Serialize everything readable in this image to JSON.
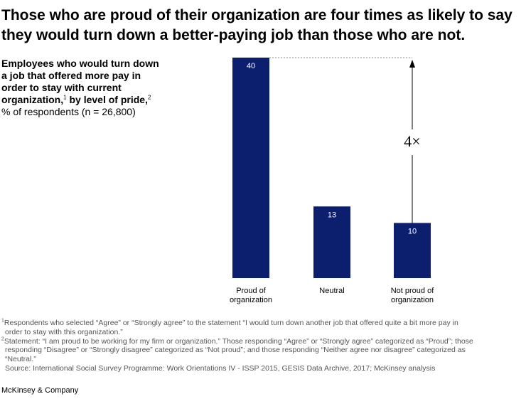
{
  "headline": "Those who are proud of their organization are four times as likely to say they would turn down a better-paying job than those who are not.",
  "subtitle": {
    "line1": "Employees who would turn down a job that offered more pay in order to stay with current organization,",
    "fn1": "1",
    "line2": " by level of pride,",
    "fn2": "2",
    "unit": "% of respondents (n = 26,800)"
  },
  "colors": {
    "bar": "#0b1f6e",
    "bar_label": "#ffffff",
    "annotation": "#000000",
    "dotted": "#888888"
  },
  "chart_data": {
    "type": "bar",
    "title": "Employees who would turn down a job that offered more pay in order to stay with current organization, by level of pride",
    "ylabel": "% of respondents (n = 26,800)",
    "xlabel": "",
    "categories": [
      [
        "Proud of",
        "organization"
      ],
      [
        "Neutral"
      ],
      [
        "Not proud of",
        "organization"
      ]
    ],
    "values": [
      40,
      13,
      10
    ],
    "ylim": [
      0,
      40
    ],
    "annotation": "4×",
    "grid": false
  },
  "footnotes": {
    "fn1_mark": "1",
    "fn1_a": "Respondents who selected “Agree” or “Strongly agree” to the statement “I would turn down another job that offered quite a bit more pay in",
    "fn1_b": "order to stay with this organization.”",
    "fn2_mark": "2",
    "fn2_a": "Statement: “I am proud to be working for my firm or organization.” Those responding “Agree” or “Strongly agree” categorized as “Proud”; those",
    "fn2_b": "responding “Disagree” or “Strongly disagree” categorized as “Not proud”; and those responding “Neither agree nor disagree” categorized as",
    "fn2_c": "“Neutral.”",
    "source": "Source: International Social Survey Programme: Work Orientations IV - ISSP 2015, GESIS Data Archive, 2017; McKinsey analysis"
  },
  "brand": "McKinsey & Company"
}
